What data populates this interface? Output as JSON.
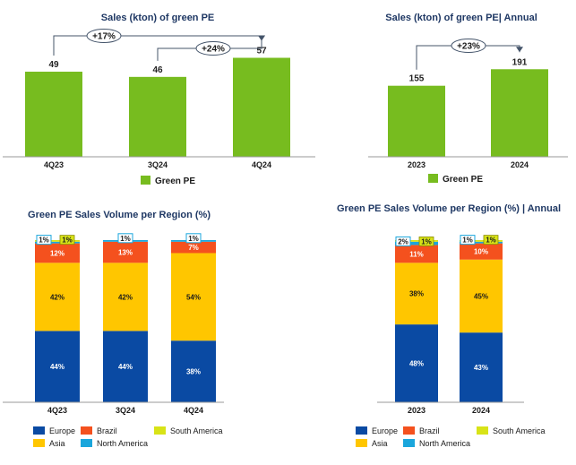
{
  "colors": {
    "green": "#77bc1f",
    "europe": "#0a4aa3",
    "brazil": "#f4511e",
    "south_america": "#d8e317",
    "asia": "#ffc600",
    "north_america": "#1aa6dc",
    "arrow": "#44546a",
    "title": "#1f3864"
  },
  "chart_data": [
    {
      "id": "quarterly_sales",
      "type": "bar",
      "title": "Sales (kton) of green PE",
      "categories": [
        "4Q23",
        "3Q24",
        "4Q24"
      ],
      "values": [
        49,
        46,
        57
      ],
      "series_name": "Green PE",
      "ylim": [
        0,
        65
      ],
      "annotations": [
        {
          "from": "4Q23",
          "to": "4Q24",
          "label": "+17%"
        },
        {
          "from": "3Q24",
          "to": "4Q24",
          "label": "+24%"
        }
      ]
    },
    {
      "id": "annual_sales",
      "type": "bar",
      "title": "Sales (kton) of green PE| Annual",
      "categories": [
        "2023",
        "2024"
      ],
      "values": [
        155,
        191
      ],
      "series_name": "Green PE",
      "ylim": [
        0,
        215
      ],
      "annotations": [
        {
          "from": "2023",
          "to": "2024",
          "label": "+23%"
        }
      ]
    },
    {
      "id": "quarterly_region",
      "type": "stacked_bar",
      "title": "Green PE Sales Volume per Region (%)",
      "categories": [
        "4Q23",
        "3Q24",
        "4Q24"
      ],
      "series": [
        {
          "name": "Europe",
          "key": "europe",
          "values": [
            44,
            44,
            38
          ],
          "labels": [
            "44%",
            "44%",
            "38%"
          ]
        },
        {
          "name": "Asia",
          "key": "asia",
          "values": [
            42,
            42,
            54
          ],
          "labels": [
            "42%",
            "42%",
            "54%"
          ]
        },
        {
          "name": "Brazil",
          "key": "brazil",
          "values": [
            12,
            13,
            7
          ],
          "labels": [
            "12%",
            "13%",
            "7%"
          ]
        },
        {
          "name": "North America",
          "key": "north_america",
          "values": [
            1,
            1,
            1
          ],
          "labels": [
            "1%",
            "1%",
            "1%"
          ]
        },
        {
          "name": "South America",
          "key": "south_america",
          "values": [
            1,
            0,
            0
          ],
          "labels": [
            "1%",
            "",
            ""
          ]
        }
      ],
      "ylim": [
        0,
        100
      ]
    },
    {
      "id": "annual_region",
      "type": "stacked_bar",
      "title": "Green PE Sales Volume per Region (%) | Annual",
      "categories": [
        "2023",
        "2024"
      ],
      "series": [
        {
          "name": "Europe",
          "key": "europe",
          "values": [
            48,
            43
          ],
          "labels": [
            "48%",
            "43%"
          ]
        },
        {
          "name": "Asia",
          "key": "asia",
          "values": [
            38,
            45
          ],
          "labels": [
            "38%",
            "45%"
          ]
        },
        {
          "name": "Brazil",
          "key": "brazil",
          "values": [
            11,
            10
          ],
          "labels": [
            "11%",
            "10%"
          ]
        },
        {
          "name": "North America",
          "key": "north_america",
          "values": [
            2,
            1
          ],
          "labels": [
            "2%",
            "1%"
          ]
        },
        {
          "name": "South America",
          "key": "south_america",
          "values": [
            1,
            1
          ],
          "labels": [
            "1%",
            "1%"
          ]
        }
      ],
      "ylim": [
        0,
        100
      ]
    }
  ],
  "legend_regions": {
    "europe": "Europe",
    "brazil": "Brazil",
    "south_america": "South America",
    "asia": "Asia",
    "north_america": "North America"
  }
}
